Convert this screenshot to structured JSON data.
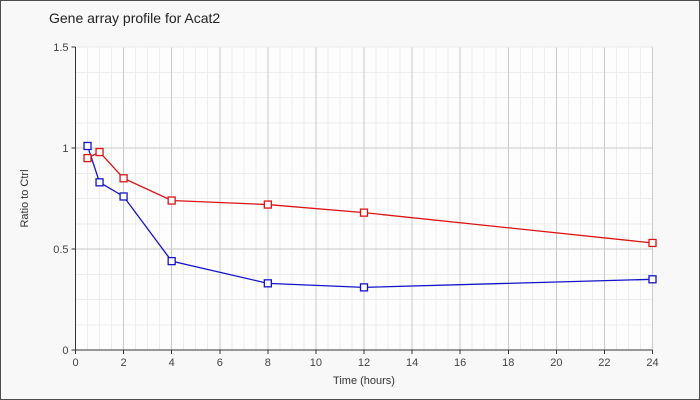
{
  "window": {
    "background_color": "#f8f8f8",
    "border_color": "#4d4d4d",
    "plot_background_color": "#fdfdfd"
  },
  "chart": {
    "title": "Gene array profile for Acat2",
    "xlabel": "Time (hours)",
    "ylabel": "Ratio to Ctrl"
  },
  "grid": {
    "major_color": "#c9c9c9",
    "minor_color": "#ededed",
    "axis_color": "#333333"
  },
  "chart_data": {
    "type": "line",
    "title": "Gene array profile for Acat2",
    "xlabel": "Time (hours)",
    "ylabel": "Ratio to Ctrl",
    "xlim": [
      0,
      24
    ],
    "ylim": [
      0,
      1.5
    ],
    "x_major_ticks": [
      0,
      2,
      4,
      6,
      8,
      10,
      12,
      14,
      16,
      18,
      20,
      22,
      24
    ],
    "y_major_ticks": [
      0,
      0.5,
      1,
      1.5
    ],
    "x_minor_step": 0.5,
    "y_minor_step": 0.125,
    "grid": true,
    "legend_position": "none",
    "marker": "open-square",
    "x": [
      0.5,
      1,
      2,
      4,
      8,
      12,
      24
    ],
    "series": [
      {
        "name": "blue-series",
        "color": "#1414c8",
        "values": [
          1.01,
          0.83,
          0.76,
          0.44,
          0.33,
          0.31,
          0.35
        ]
      },
      {
        "name": "red-series",
        "color": "#dc1414",
        "values": [
          0.95,
          0.98,
          0.85,
          0.74,
          0.72,
          0.68,
          0.53
        ]
      }
    ]
  }
}
